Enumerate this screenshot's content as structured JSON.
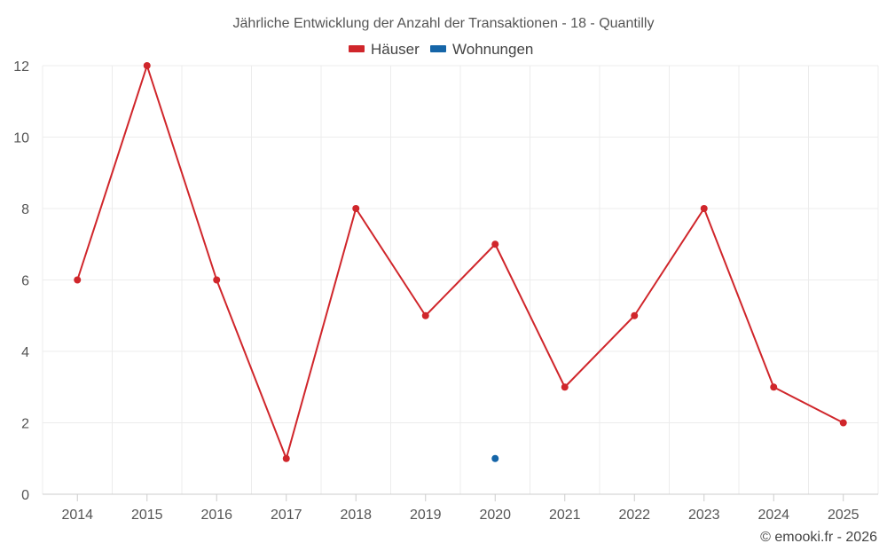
{
  "chart_data": {
    "type": "line",
    "title": "Jährliche Entwicklung der Anzahl der Transaktionen - 18 - Quantilly",
    "categories": [
      "2014",
      "2015",
      "2016",
      "2017",
      "2018",
      "2019",
      "2020",
      "2021",
      "2022",
      "2023",
      "2024",
      "2025"
    ],
    "series": [
      {
        "name": "Häuser",
        "color": "#d0262b",
        "values": [
          6,
          12,
          6,
          1,
          8,
          5,
          7,
          3,
          5,
          8,
          3,
          2
        ]
      },
      {
        "name": "Wohnungen",
        "color": "#1565a8",
        "values": [
          null,
          null,
          null,
          null,
          null,
          null,
          1,
          null,
          null,
          null,
          null,
          null
        ]
      }
    ],
    "yticks": [
      "0",
      "2",
      "4",
      "6",
      "8",
      "10",
      "12"
    ],
    "ylim": [
      0,
      12
    ],
    "grid": true,
    "legend_position": "top-center",
    "credit": "© emooki.fr - 2026"
  }
}
